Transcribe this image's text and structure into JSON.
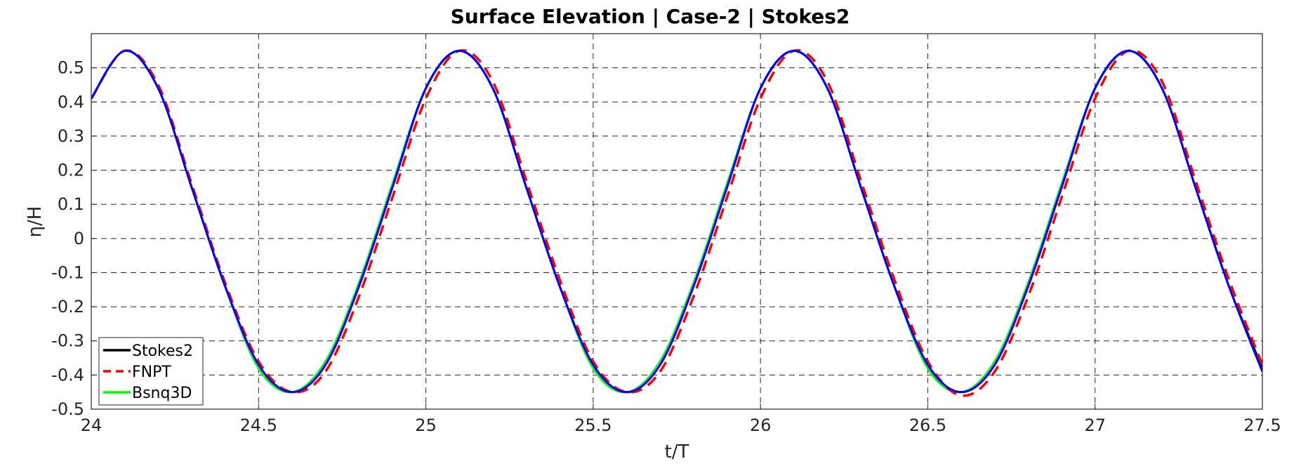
{
  "chart_data": {
    "type": "line",
    "title": "Surface Elevation | Case-2 | Stokes2",
    "xlabel": "t/T",
    "ylabel": "η/H",
    "xlim": [
      24,
      27.5
    ],
    "ylim": [
      -0.5,
      0.6
    ],
    "xticks": [
      "24",
      "24.5",
      "25",
      "25.5",
      "26",
      "26.5",
      "27",
      "27.5"
    ],
    "yticks": [
      "-0.5",
      "-0.4",
      "-0.3",
      "-0.2",
      "-0.1",
      "0",
      "0.1",
      "0.2",
      "0.3",
      "0.4",
      "0.5"
    ],
    "grid": true,
    "legend_location": "bottom-left",
    "x": [
      24.0,
      24.1,
      24.2,
      24.3,
      24.4,
      24.5,
      24.6,
      24.7,
      24.8,
      24.9,
      25.0,
      25.1,
      25.2,
      25.3,
      25.4,
      25.5,
      25.6,
      25.7,
      25.8,
      25.9,
      26.0,
      26.1,
      26.2,
      26.3,
      26.4,
      26.5,
      26.6,
      26.7,
      26.8,
      26.9,
      27.0,
      27.1,
      27.2,
      27.3,
      27.4,
      27.5
    ],
    "series": [
      {
        "name": "Stokes2",
        "color": "#000000",
        "dash": "solid",
        "values": [
          0.41,
          0.55,
          0.44,
          0.15,
          -0.14,
          -0.37,
          -0.45,
          -0.37,
          -0.14,
          0.15,
          0.44,
          0.55,
          0.44,
          0.15,
          -0.14,
          -0.37,
          -0.45,
          -0.37,
          -0.14,
          0.15,
          0.44,
          0.55,
          0.44,
          0.15,
          -0.14,
          -0.37,
          -0.45,
          -0.37,
          -0.14,
          0.15,
          0.44,
          0.55,
          0.44,
          0.15,
          -0.14,
          -0.38
        ]
      },
      {
        "name": "FNPT",
        "color": "#ff0000",
        "dash": "dashed",
        "values": [
          0.41,
          0.55,
          0.45,
          0.16,
          -0.13,
          -0.36,
          -0.45,
          -0.39,
          -0.17,
          0.12,
          0.41,
          0.55,
          0.46,
          0.17,
          -0.12,
          -0.36,
          -0.45,
          -0.39,
          -0.17,
          0.12,
          0.41,
          0.55,
          0.46,
          0.17,
          -0.12,
          -0.36,
          -0.46,
          -0.39,
          -0.17,
          0.12,
          0.41,
          0.55,
          0.46,
          0.17,
          -0.12,
          -0.37
        ]
      },
      {
        "name": "Bsnq3D",
        "color": "#00ff00",
        "dash": "solid",
        "values": [
          0.41,
          0.55,
          0.44,
          0.15,
          -0.14,
          -0.38,
          -0.45,
          -0.36,
          -0.13,
          0.16,
          0.44,
          0.55,
          0.44,
          0.15,
          -0.14,
          -0.38,
          -0.45,
          -0.36,
          -0.13,
          0.16,
          0.44,
          0.55,
          0.44,
          0.15,
          -0.14,
          -0.38,
          -0.45,
          -0.36,
          -0.13,
          0.16,
          0.44,
          0.55,
          0.44,
          0.15,
          -0.14,
          -0.39
        ]
      },
      {
        "color": "#0000ff",
        "dash": "solid",
        "values": [
          0.41,
          0.55,
          0.44,
          0.15,
          -0.14,
          -0.37,
          -0.45,
          -0.37,
          -0.14,
          0.15,
          0.44,
          0.55,
          0.44,
          0.15,
          -0.14,
          -0.37,
          -0.45,
          -0.37,
          -0.14,
          0.15,
          0.44,
          0.55,
          0.44,
          0.15,
          -0.14,
          -0.37,
          -0.45,
          -0.37,
          -0.14,
          0.15,
          0.44,
          0.55,
          0.44,
          0.15,
          -0.14,
          -0.39
        ]
      }
    ]
  }
}
